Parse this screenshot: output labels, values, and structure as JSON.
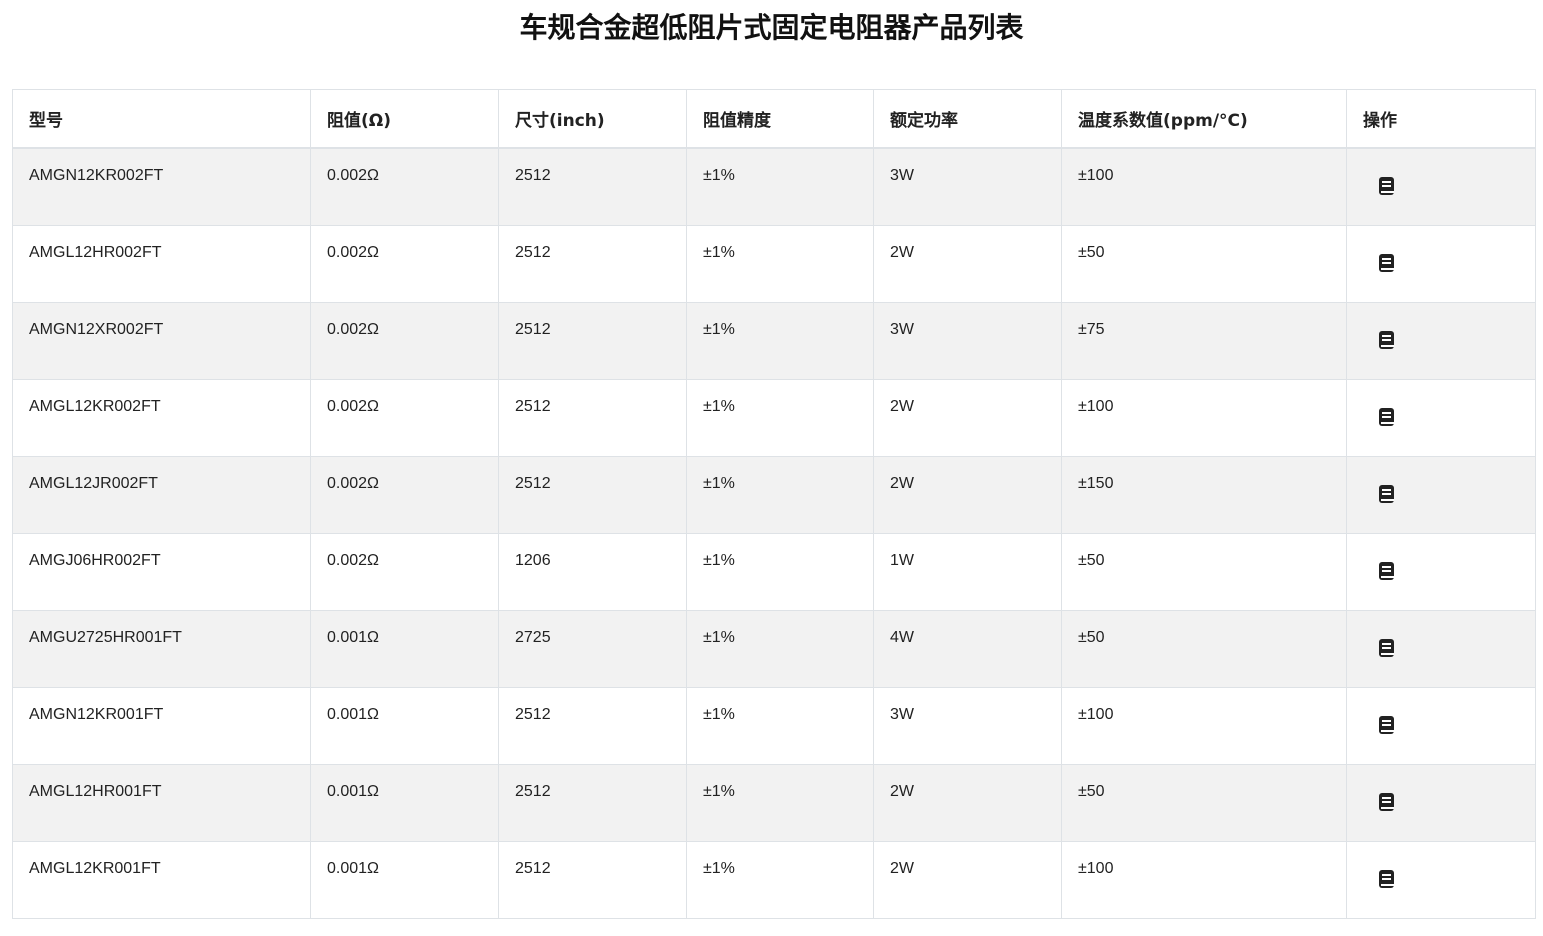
{
  "title": "车规合金超低阻片式固定电阻器产品列表",
  "columns": [
    "型号",
    "阻值(Ω)",
    "尺寸(inch)",
    "阻值精度",
    "额定功率",
    "温度系数值(ppm/°C)",
    "操作"
  ],
  "rows": [
    [
      "AMGN12KR002FT",
      "0.002Ω",
      "2512",
      "±1%",
      "3W",
      "±100"
    ],
    [
      "AMGL12HR002FT",
      "0.002Ω",
      "2512",
      "±1%",
      "2W",
      "±50"
    ],
    [
      "AMGN12XR002FT",
      "0.002Ω",
      "2512",
      "±1%",
      "3W",
      "±75"
    ],
    [
      "AMGL12KR002FT",
      "0.002Ω",
      "2512",
      "±1%",
      "2W",
      "±100"
    ],
    [
      "AMGL12JR002FT",
      "0.002Ω",
      "2512",
      "±1%",
      "2W",
      "±150"
    ],
    [
      "AMGJ06HR002FT",
      "0.002Ω",
      "1206",
      "±1%",
      "1W",
      "±50"
    ],
    [
      "AMGU2725HR001FT",
      "0.001Ω",
      "2725",
      "±1%",
      "4W",
      "±50"
    ],
    [
      "AMGN12KR001FT",
      "0.001Ω",
      "2512",
      "±1%",
      "3W",
      "±100"
    ],
    [
      "AMGL12HR001FT",
      "0.001Ω",
      "2512",
      "±1%",
      "2W",
      "±50"
    ],
    [
      "AMGL12KR001FT",
      "0.001Ω",
      "2512",
      "±1%",
      "2W",
      "±100"
    ]
  ],
  "action_icon": "book-icon",
  "colors": {
    "stripe": "#f2f2f2",
    "border": "#dee2e6"
  }
}
